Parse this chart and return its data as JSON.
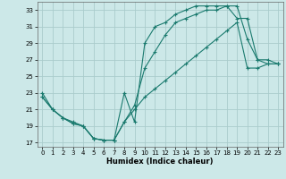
{
  "xlabel": "Humidex (Indice chaleur)",
  "background_color": "#cce8e8",
  "grid_color": "#aacccc",
  "line_color": "#1a7a6e",
  "xlim": [
    -0.5,
    23.5
  ],
  "ylim": [
    16.5,
    34.0
  ],
  "yticks": [
    17,
    19,
    21,
    23,
    25,
    27,
    29,
    31,
    33
  ],
  "xticks": [
    0,
    1,
    2,
    3,
    4,
    5,
    6,
    7,
    8,
    9,
    10,
    11,
    12,
    13,
    14,
    15,
    16,
    17,
    18,
    19,
    20,
    21,
    22,
    23
  ],
  "line1_x": [
    0,
    1,
    2,
    3,
    4,
    5,
    6,
    7,
    8,
    9,
    10,
    11,
    12,
    13,
    14,
    15,
    16,
    17,
    18,
    19,
    20,
    21,
    22,
    23
  ],
  "line1_y": [
    23,
    21,
    20,
    19.5,
    19,
    17.5,
    17.3,
    17.3,
    23,
    19.5,
    29,
    31,
    31.5,
    32.5,
    33,
    33.5,
    33.5,
    33.5,
    33.5,
    33.5,
    29.5,
    27,
    27,
    26.5
  ],
  "line2_x": [
    0,
    1,
    2,
    3,
    4,
    5,
    6,
    7,
    8,
    9,
    10,
    11,
    12,
    13,
    14,
    15,
    16,
    17,
    18,
    19,
    20,
    21,
    22,
    23
  ],
  "line2_y": [
    22.5,
    21,
    20,
    19.3,
    19,
    17.5,
    17.3,
    17.3,
    19.5,
    21.5,
    26,
    28,
    30,
    31.5,
    32,
    32.5,
    33,
    33,
    33.5,
    32,
    32,
    27,
    26.5,
    26.5
  ],
  "line3_x": [
    0,
    1,
    2,
    3,
    4,
    5,
    6,
    7,
    8,
    9,
    10,
    11,
    12,
    13,
    14,
    15,
    16,
    17,
    18,
    19,
    20,
    21,
    22,
    23
  ],
  "line3_y": [
    22.5,
    21,
    20,
    19.3,
    19,
    17.5,
    17.3,
    17.3,
    19.5,
    21,
    22.5,
    23.5,
    24.5,
    25.5,
    26.5,
    27.5,
    28.5,
    29.5,
    30.5,
    31.5,
    26,
    26,
    26.5,
    26.5
  ]
}
